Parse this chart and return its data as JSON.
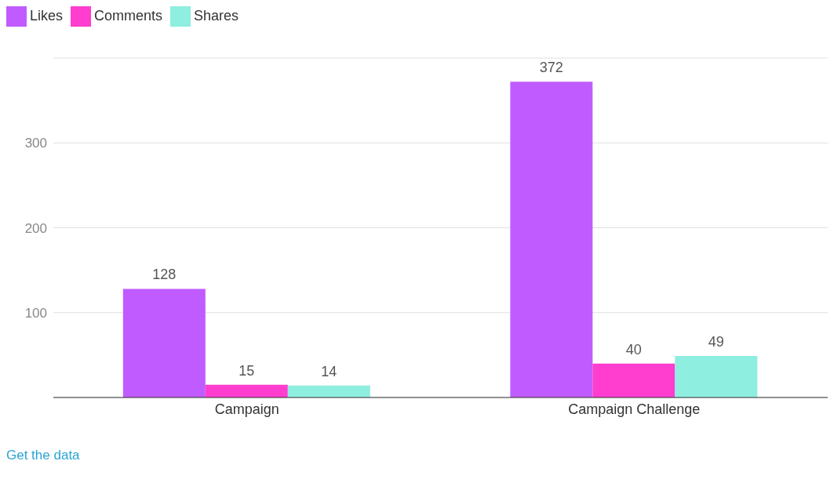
{
  "chart_data": {
    "type": "bar",
    "categories": [
      "Campaign",
      "Campaign Challenge"
    ],
    "series": [
      {
        "name": "Likes",
        "color": "#c05cff",
        "values": [
          128,
          372
        ]
      },
      {
        "name": "Comments",
        "color": "#ff3dcf",
        "values": [
          15,
          40
        ]
      },
      {
        "name": "Shares",
        "color": "#8eeedf",
        "values": [
          14,
          49
        ]
      }
    ],
    "ylim": [
      0,
      400
    ],
    "yticks": [
      {
        "value": 0,
        "label": null
      },
      100,
      200,
      300
    ],
    "grid": "y",
    "legend": "top left",
    "data_labels": true,
    "annotations": [
      "Get the data"
    ]
  }
}
